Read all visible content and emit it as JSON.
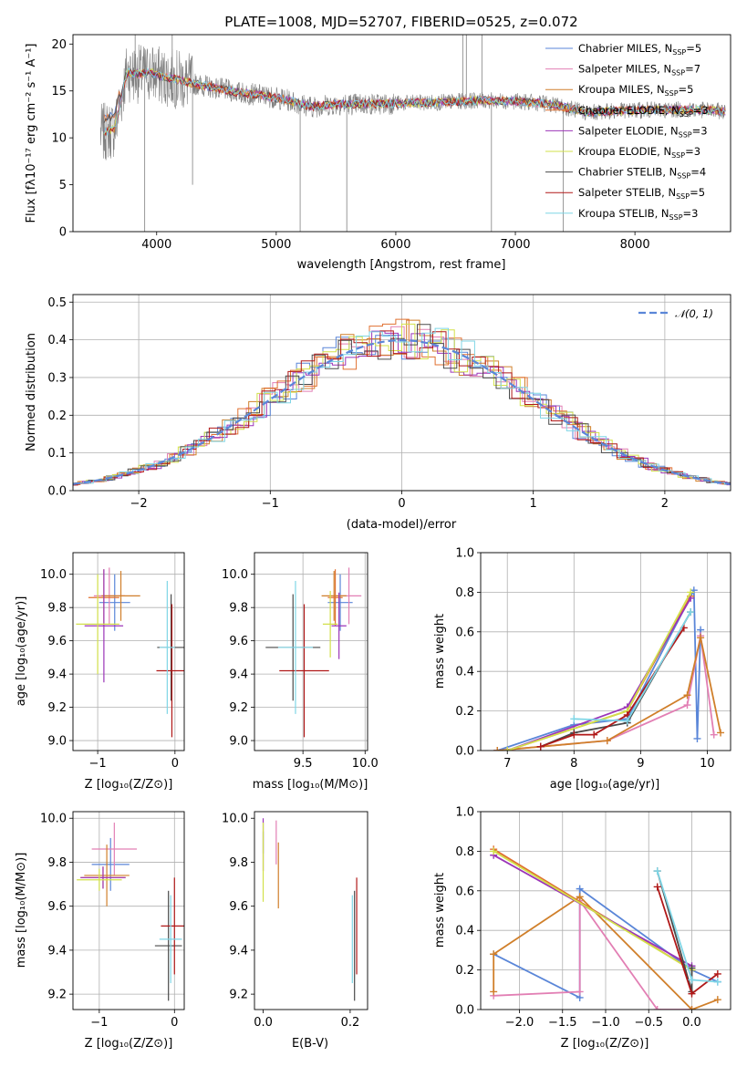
{
  "colors": {
    "chabrier_miles": "#5a86d8",
    "salpeter_miles": "#e27fb4",
    "kroupa_miles": "#d07f2a",
    "chabrier_elodie": "#e07030",
    "salpeter_elodie": "#9b35b8",
    "kroupa_elodie": "#d2e04a",
    "chabrier_stelib": "#4a4a4a",
    "salpeter_stelib": "#b01818",
    "kroupa_stelib": "#7fd6e6",
    "data_spectrum": "#808080",
    "normal_curve": "#5a86d8"
  },
  "chart_data": [
    {
      "type": "line",
      "title": "PLATE=1008, MJD=52707, FIBERID=0525, z=0.072",
      "xlabel": "wavelength [Angstrom, rest frame]",
      "ylabel": "Flux [fλ10⁻¹⁷ erg cm⁻² s⁻¹ A⁻¹]",
      "xlim": [
        3300,
        8800
      ],
      "ylim": [
        0,
        21
      ],
      "xticks": [
        "4000",
        "5000",
        "6000",
        "7000",
        "8000"
      ],
      "yticks": [
        "0",
        "5",
        "10",
        "15",
        "20"
      ],
      "legend_position": "top-right",
      "legend": [
        {
          "label": "Chabrier MILES, N",
          "sub": "SSP",
          "tail": "=5",
          "key": "chabrier_miles"
        },
        {
          "label": "Salpeter MILES, N",
          "sub": "SSP",
          "tail": "=7",
          "key": "salpeter_miles"
        },
        {
          "label": "Kroupa MILES, N",
          "sub": "SSP",
          "tail": "=5",
          "key": "kroupa_miles"
        },
        {
          "label": "Chabrier ELODIE, N",
          "sub": "SSP",
          "tail": "=3",
          "key": "chabrier_elodie"
        },
        {
          "label": "Salpeter ELODIE, N",
          "sub": "SSP",
          "tail": "=3",
          "key": "salpeter_elodie"
        },
        {
          "label": "Kroupa ELODIE, N",
          "sub": "SSP",
          "tail": "=3",
          "key": "kroupa_elodie"
        },
        {
          "label": "Chabrier STELIB, N",
          "sub": "SSP",
          "tail": "=4",
          "key": "chabrier_stelib"
        },
        {
          "label": "Salpeter STELIB, N",
          "sub": "SSP",
          "tail": "=5",
          "key": "salpeter_stelib"
        },
        {
          "label": "Kroupa STELIB, N",
          "sub": "SSP",
          "tail": "=3",
          "key": "kroupa_stelib"
        }
      ],
      "continuum": {
        "x": [
          3550,
          3650,
          3750,
          3850,
          3950,
          4050,
          4150,
          4300,
          4500,
          4700,
          4900,
          5100,
          5300,
          5500,
          5800,
          6100,
          6400,
          6700,
          7000,
          7300,
          7600,
          7900,
          8200,
          8500,
          8800
        ],
        "y": [
          10.5,
          11.0,
          17.0,
          16.8,
          17.0,
          16.5,
          16.3,
          15.8,
          15.3,
          14.8,
          14.5,
          14.0,
          13.3,
          13.6,
          13.6,
          13.7,
          13.8,
          14.0,
          13.9,
          13.6,
          12.7,
          12.9,
          13.0,
          13.0,
          12.8
        ]
      }
    },
    {
      "type": "line",
      "xlabel": "(data-model)/error",
      "ylabel": "Normed distribution",
      "xlim": [
        -2.5,
        2.5
      ],
      "ylim": [
        0,
        0.52
      ],
      "xticks": [
        "−2",
        "−1",
        "0",
        "1",
        "2"
      ],
      "yticks": [
        "0.0",
        "0.1",
        "0.2",
        "0.3",
        "0.4",
        "0.5"
      ],
      "grid": true,
      "legend_position": "top-right",
      "legend_label": "𝒩(0, 1)",
      "normal": {
        "mean": 0,
        "sigma": 1
      }
    },
    {
      "type": "scatter",
      "xlabel": "Z [log₁₀(Z/Z⊙)]",
      "ylabel": "age  [log₁₀(age/yr)]",
      "xlim": [
        -1.32,
        0.12
      ],
      "ylim": [
        8.94,
        10.13
      ],
      "xticks": [
        "−1",
        "0"
      ],
      "yticks": [
        "9.0",
        "9.2",
        "9.4",
        "9.6",
        "9.8",
        "10.0"
      ],
      "grid": true,
      "points": [
        {
          "key": "chabrier_miles",
          "x": -0.78,
          "y": 9.83,
          "ex": 0.2,
          "ey": 0.17
        },
        {
          "key": "salpeter_miles",
          "x": -0.85,
          "y": 9.87,
          "ex": 0.2,
          "ey": 0.17
        },
        {
          "key": "kroupa_miles",
          "x": -0.7,
          "y": 9.87,
          "ex": 0.25,
          "ey": 0.15
        },
        {
          "key": "chabrier_elodie",
          "x": -0.92,
          "y": 9.86,
          "ex": 0.2,
          "ey": 0.17
        },
        {
          "key": "salpeter_elodie",
          "x": -0.92,
          "y": 9.69,
          "ex": 0.25,
          "ey": 0.34
        },
        {
          "key": "kroupa_elodie",
          "x": -1.0,
          "y": 9.7,
          "ex": 0.28,
          "ey": 0.3
        },
        {
          "key": "chabrier_stelib",
          "x": -0.05,
          "y": 9.56,
          "ex": 0.18,
          "ey": 0.32
        },
        {
          "key": "salpeter_stelib",
          "x": -0.04,
          "y": 9.42,
          "ex": 0.2,
          "ey": 0.4
        },
        {
          "key": "kroupa_stelib",
          "x": -0.1,
          "y": 9.56,
          "ex": 0.1,
          "ey": 0.4
        }
      ]
    },
    {
      "type": "scatter",
      "xlabel": "mass [log₁₀(M/M⊙)]",
      "ylabel": "",
      "xlim": [
        9.11,
        10.02
      ],
      "ylim": [
        8.94,
        10.13
      ],
      "xticks": [
        "9.5",
        "10.0"
      ],
      "yticks": [
        "9.0",
        "9.2",
        "9.4",
        "9.6",
        "9.8",
        "10.0"
      ],
      "grid": true,
      "points": [
        {
          "key": "chabrier_miles",
          "x": 9.8,
          "y": 9.83,
          "ex": 0.1,
          "ey": 0.17
        },
        {
          "key": "salpeter_miles",
          "x": 9.87,
          "y": 9.87,
          "ex": 0.1,
          "ey": 0.17
        },
        {
          "key": "kroupa_miles",
          "x": 9.75,
          "y": 9.87,
          "ex": 0.1,
          "ey": 0.15
        },
        {
          "key": "chabrier_elodie",
          "x": 9.76,
          "y": 9.86,
          "ex": 0.06,
          "ey": 0.17
        },
        {
          "key": "salpeter_elodie",
          "x": 9.79,
          "y": 9.69,
          "ex": 0.06,
          "ey": 0.2
        },
        {
          "key": "kroupa_elodie",
          "x": 9.72,
          "y": 9.7,
          "ex": 0.06,
          "ey": 0.2
        },
        {
          "key": "chabrier_stelib",
          "x": 9.42,
          "y": 9.56,
          "ex": 0.22,
          "ey": 0.32
        },
        {
          "key": "salpeter_stelib",
          "x": 9.51,
          "y": 9.42,
          "ex": 0.2,
          "ey": 0.4
        },
        {
          "key": "kroupa_stelib",
          "x": 9.44,
          "y": 9.56,
          "ex": 0.14,
          "ey": 0.4
        }
      ]
    },
    {
      "type": "line",
      "xlabel": "age  [log₁₀(age/yr)]",
      "ylabel": "mass weight",
      "xlim": [
        6.6,
        10.35
      ],
      "ylim": [
        0,
        1.0
      ],
      "xticks": [
        "7",
        "8",
        "9",
        "10"
      ],
      "yticks": [
        "0.0",
        "0.2",
        "0.4",
        "0.6",
        "0.8",
        "1.0"
      ],
      "grid": true,
      "series": [
        {
          "key": "chabrier_miles",
          "x": [
            6.85,
            8.0,
            8.8,
            9.8,
            9.85,
            9.9
          ],
          "y": [
            0.0,
            0.13,
            0.16,
            0.81,
            0.06,
            0.61
          ]
        },
        {
          "key": "salpeter_miles",
          "x": [
            6.85,
            8.5,
            9.7,
            9.9,
            10.1
          ],
          "y": [
            0.0,
            0.05,
            0.23,
            0.58,
            0.08
          ]
        },
        {
          "key": "kroupa_miles",
          "x": [
            6.85,
            8.5,
            9.7,
            9.9,
            10.2
          ],
          "y": [
            0.0,
            0.05,
            0.28,
            0.57,
            0.09
          ]
        },
        {
          "key": "chabrier_elodie",
          "x": [
            7.0,
            8.8,
            9.75
          ],
          "y": [
            0.0,
            0.2,
            0.78
          ]
        },
        {
          "key": "salpeter_elodie",
          "x": [
            7.0,
            8.8,
            9.75
          ],
          "y": [
            0.0,
            0.22,
            0.77
          ]
        },
        {
          "key": "kroupa_elodie",
          "x": [
            7.0,
            8.8,
            9.75
          ],
          "y": [
            0.0,
            0.2,
            0.8
          ]
        },
        {
          "key": "chabrier_stelib",
          "x": [
            7.5,
            8.0,
            8.8,
            9.75
          ],
          "y": [
            0.02,
            0.09,
            0.14,
            0.7
          ]
        },
        {
          "key": "salpeter_stelib",
          "x": [
            7.5,
            8.0,
            8.3,
            8.8,
            9.65
          ],
          "y": [
            0.02,
            0.08,
            0.08,
            0.18,
            0.62
          ]
        },
        {
          "key": "kroupa_stelib",
          "x": [
            8.0,
            8.8,
            9.75
          ],
          "y": [
            0.16,
            0.15,
            0.7
          ]
        }
      ]
    },
    {
      "type": "scatter",
      "xlabel": "Z [log₁₀(Z/Z⊙)]",
      "ylabel": "mass [log₁₀(M/M⊙)]",
      "xlim": [
        -1.35,
        0.13
      ],
      "ylim": [
        9.13,
        10.03
      ],
      "xticks": [
        "−1",
        "0"
      ],
      "yticks": [
        "9.2",
        "9.4",
        "9.6",
        "9.8",
        "10.0"
      ],
      "grid": true,
      "points": [
        {
          "key": "chabrier_miles",
          "x": -0.85,
          "y": 9.79,
          "ex": 0.25,
          "ey": 0.12
        },
        {
          "key": "salpeter_miles",
          "x": -0.8,
          "y": 9.86,
          "ex": 0.3,
          "ey": 0.12
        },
        {
          "key": "kroupa_miles",
          "x": -0.9,
          "y": 9.74,
          "ex": 0.3,
          "ey": 0.14
        },
        {
          "key": "chabrier_elodie",
          "x": -0.95,
          "y": 9.73,
          "ex": 0.3,
          "ey": 0.05
        },
        {
          "key": "salpeter_elodie",
          "x": -0.95,
          "y": 9.73,
          "ex": 0.3,
          "ey": 0.05
        },
        {
          "key": "kroupa_elodie",
          "x": -1.0,
          "y": 9.72,
          "ex": 0.3,
          "ey": 0.05
        },
        {
          "key": "chabrier_stelib",
          "x": -0.08,
          "y": 9.42,
          "ex": 0.18,
          "ey": 0.25
        },
        {
          "key": "salpeter_stelib",
          "x": 0.0,
          "y": 9.51,
          "ex": 0.18,
          "ey": 0.22
        },
        {
          "key": "kroupa_stelib",
          "x": -0.05,
          "y": 9.45,
          "ex": 0.15,
          "ey": 0.2
        }
      ]
    },
    {
      "type": "scatter",
      "xlabel": "E(B-V)",
      "ylabel": "",
      "xlim": [
        -0.02,
        0.24
      ],
      "ylim": [
        9.13,
        10.03
      ],
      "xticks": [
        "0.0",
        "0.2"
      ],
      "yticks": [
        "9.2",
        "9.4",
        "9.6",
        "9.8",
        "10.0"
      ],
      "grid": false,
      "points": [
        {
          "key": "chabrier_miles",
          "x": 0.0,
          "y": 9.89,
          "ex": 0,
          "ey": 0.05
        },
        {
          "key": "salpeter_miles",
          "x": 0.03,
          "y": 9.89,
          "ex": 0,
          "ey": 0.1
        },
        {
          "key": "kroupa_miles",
          "x": 0.035,
          "y": 9.74,
          "ex": 0,
          "ey": 0.15
        },
        {
          "key": "salpeter_elodie",
          "x": 0.0,
          "y": 9.88,
          "ex": 0,
          "ey": 0.12
        },
        {
          "key": "kroupa_elodie",
          "x": 0.0,
          "y": 9.8,
          "ex": 0,
          "ey": 0.18
        },
        {
          "key": "chabrier_stelib",
          "x": 0.21,
          "y": 9.42,
          "ex": 0,
          "ey": 0.25
        },
        {
          "key": "salpeter_stelib",
          "x": 0.215,
          "y": 9.51,
          "ex": 0,
          "ey": 0.22
        },
        {
          "key": "kroupa_stelib",
          "x": 0.205,
          "y": 9.45,
          "ex": 0,
          "ey": 0.2
        }
      ]
    },
    {
      "type": "line",
      "xlabel": "Z [log₁₀(Z/Z⊙)]",
      "ylabel": "mass weight",
      "xlim": [
        -2.45,
        0.45
      ],
      "ylim": [
        0,
        1.0
      ],
      "xticks": [
        "−2.0",
        "−1.5",
        "−1.0",
        "−0.5",
        "0.0"
      ],
      "yticks": [
        "0.0",
        "0.2",
        "0.4",
        "0.6",
        "0.8",
        "1.0"
      ],
      "grid": true,
      "series": [
        {
          "key": "chabrier_miles",
          "x": [
            -2.3,
            -1.3,
            -1.3,
            0.0,
            0.3
          ],
          "y": [
            0.28,
            0.06,
            0.61,
            0.2,
            0.14
          ]
        },
        {
          "key": "salpeter_miles",
          "x": [
            -2.3,
            -1.3,
            -1.3,
            -0.4,
            0.0
          ],
          "y": [
            0.07,
            0.09,
            0.55,
            0.0,
            0.0
          ]
        },
        {
          "key": "kroupa_miles",
          "x": [
            -2.3,
            -2.3,
            -1.3,
            0.0,
            0.3
          ],
          "y": [
            0.09,
            0.28,
            0.57,
            0.0,
            0.05
          ]
        },
        {
          "key": "chabrier_elodie",
          "x": [
            -2.3,
            0.0
          ],
          "y": [
            0.81,
            0.2
          ]
        },
        {
          "key": "salpeter_elodie",
          "x": [
            -2.3,
            0.0
          ],
          "y": [
            0.78,
            0.22
          ]
        },
        {
          "key": "kroupa_elodie",
          "x": [
            -2.3,
            0.0
          ],
          "y": [
            0.8,
            0.2
          ]
        },
        {
          "key": "chabrier_stelib",
          "x": [
            -0.4,
            0.0,
            0.0
          ],
          "y": [
            0.7,
            0.09,
            0.21
          ]
        },
        {
          "key": "salpeter_stelib",
          "x": [
            -0.4,
            0.0,
            0.3
          ],
          "y": [
            0.62,
            0.08,
            0.18
          ]
        },
        {
          "key": "kroupa_stelib",
          "x": [
            -0.4,
            0.0,
            0.3
          ],
          "y": [
            0.7,
            0.15,
            0.14
          ]
        }
      ]
    }
  ]
}
